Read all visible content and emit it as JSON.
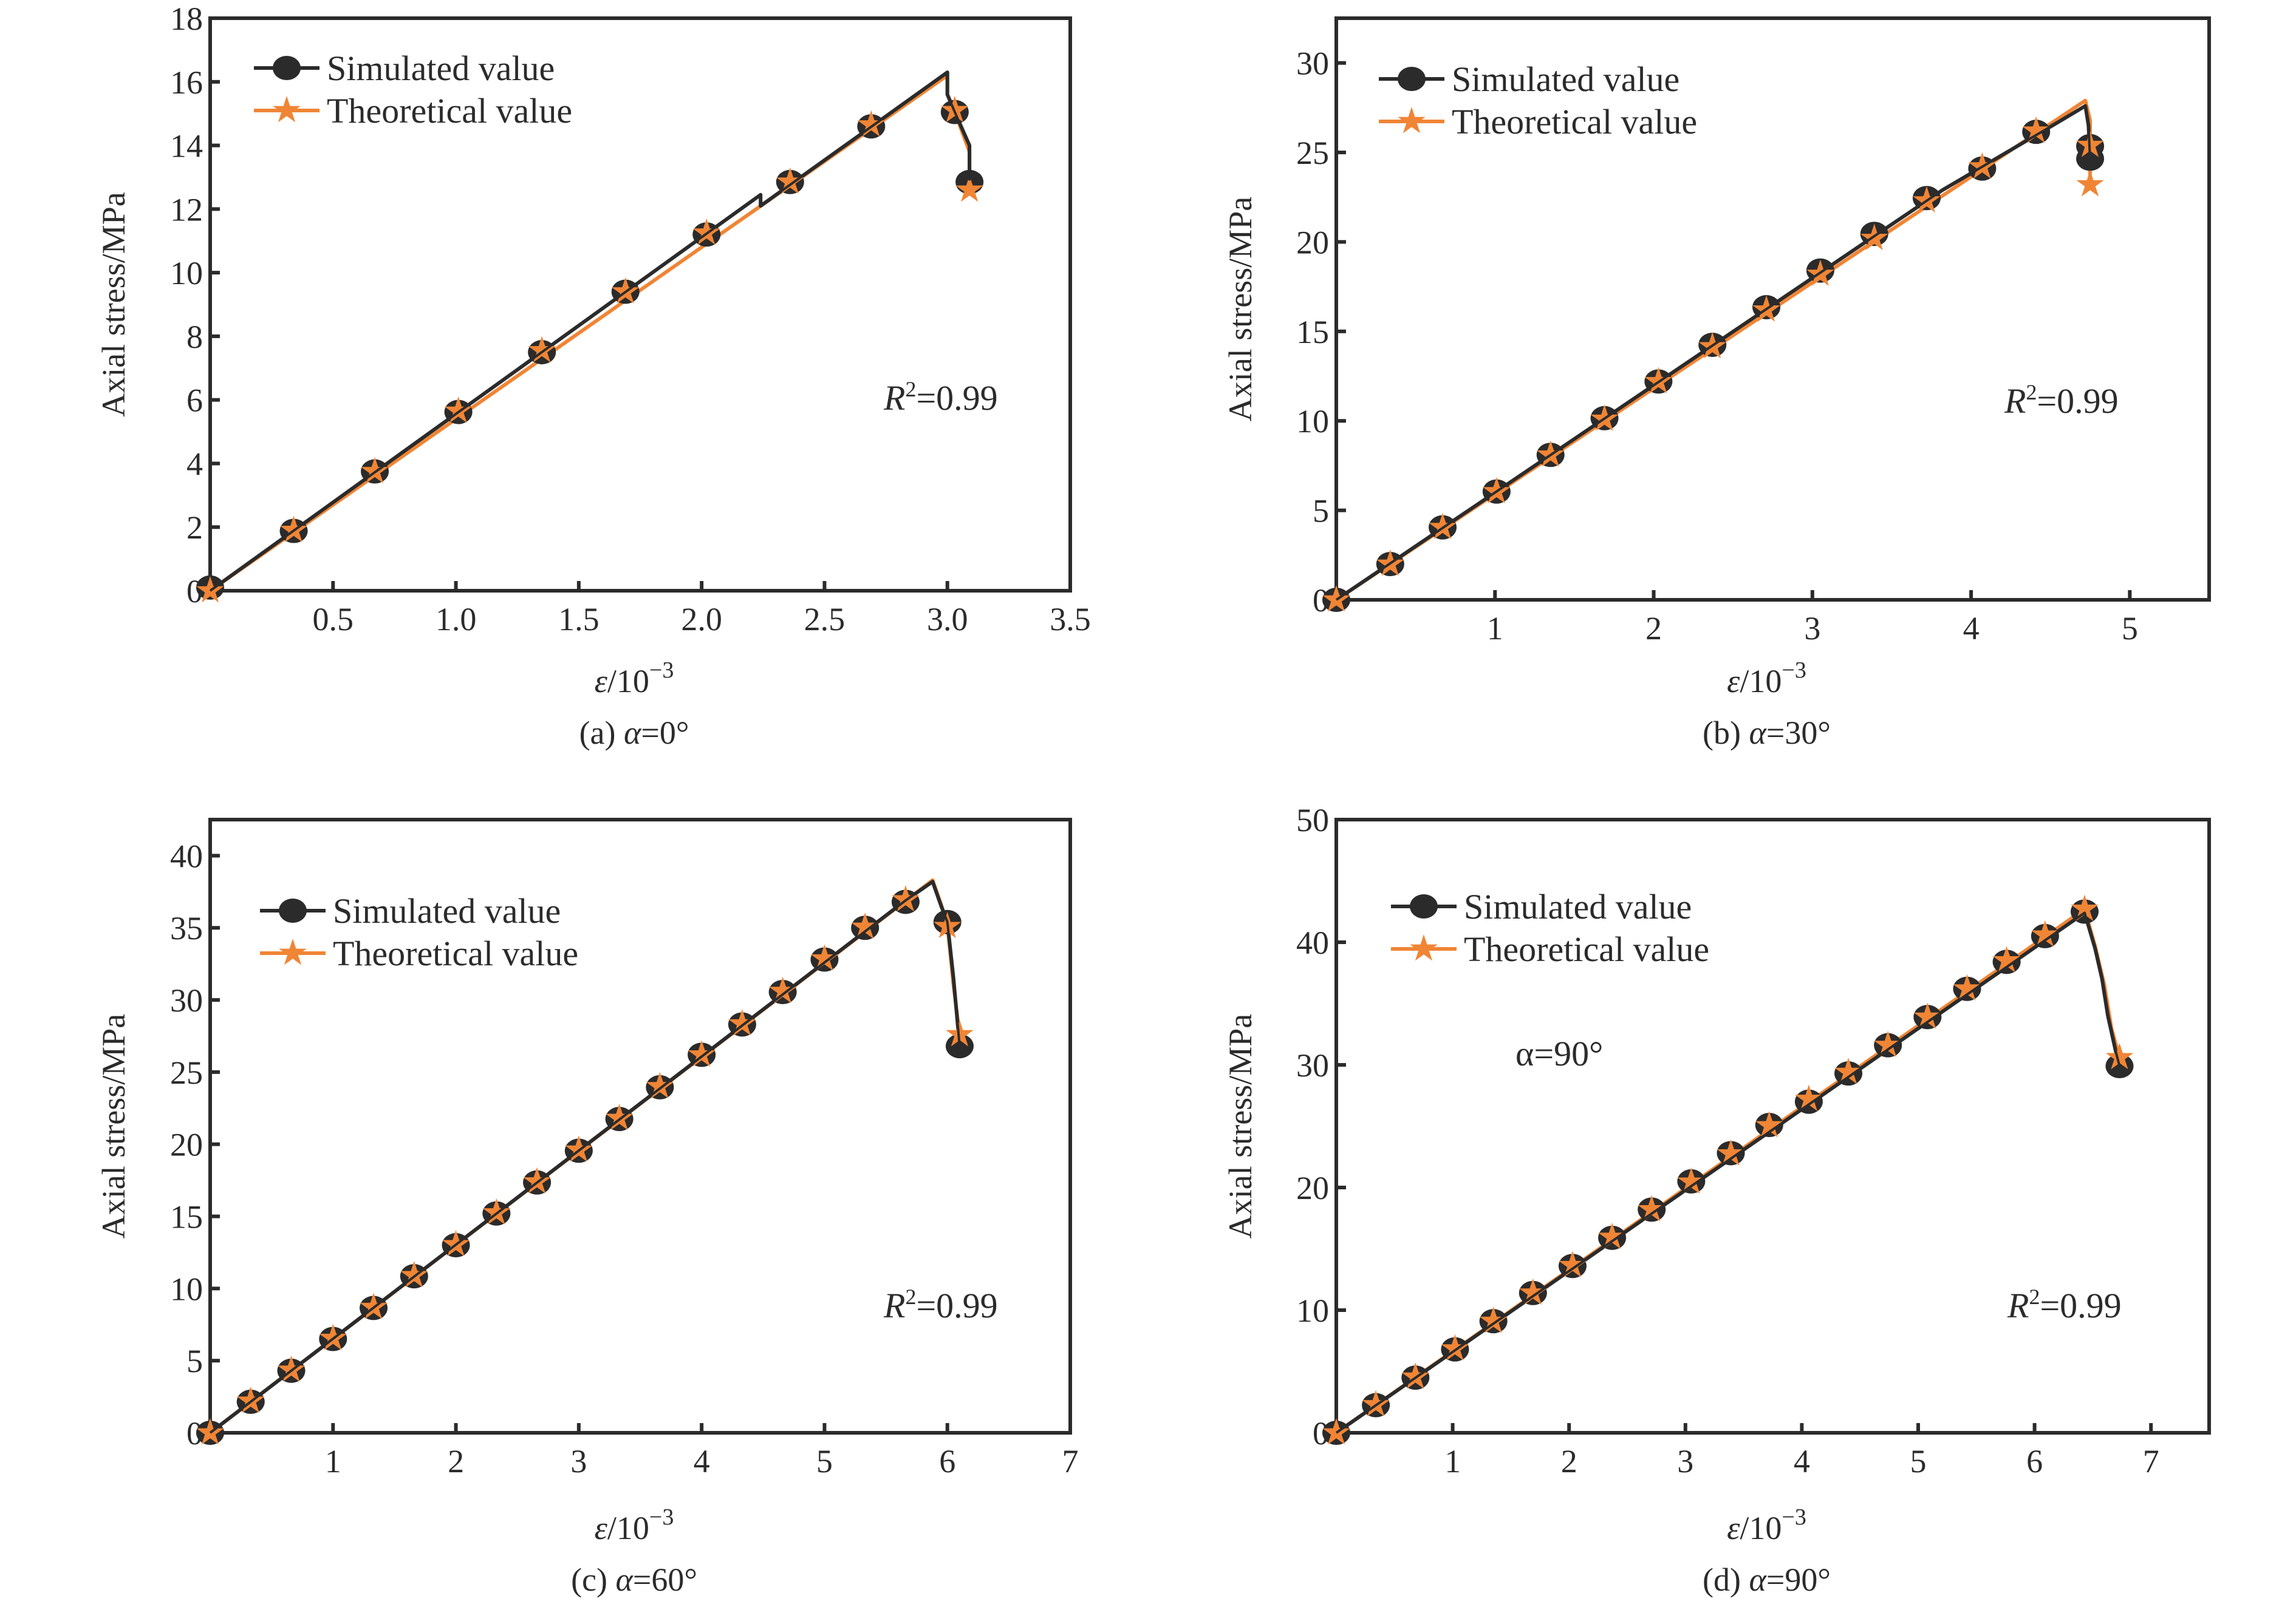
{
  "colors": {
    "simulated": "#2b2b2b",
    "theoretical": "#f08535",
    "axis": "#2b2b2b"
  },
  "chart_data": [
    {
      "type": "line",
      "panel": "a",
      "caption_prefix": "(a) ",
      "caption_alpha": "α",
      "caption_suffix": "=0°",
      "xlabel_base": "ε/10",
      "xlabel_exp": "−3",
      "ylabel": "Axial stress/MPa",
      "xlim": [
        0,
        3.5
      ],
      "ylim": [
        0,
        18
      ],
      "xticks": [
        0.5,
        1.0,
        1.5,
        2.0,
        2.5,
        3.0,
        3.5
      ],
      "xtick_labels": [
        "0.5",
        "1.0",
        "1.5",
        "2.0",
        "2.5",
        "3.0",
        "3.5"
      ],
      "yticks": [
        0,
        2,
        4,
        6,
        8,
        10,
        12,
        14,
        16,
        18
      ],
      "ytick_labels": [
        "0",
        "2",
        "4",
        "6",
        "8",
        "10",
        "12",
        "14",
        "16",
        "18"
      ],
      "legend": {
        "position": "top-left",
        "entries": [
          "Simulated value",
          "Theoretical value"
        ]
      },
      "annotation_r2": {
        "R": "R",
        "sup": "2",
        "value": "=0.99"
      },
      "annotation_alpha": null,
      "series": [
        {
          "name": "Simulated value",
          "marker": "circle",
          "line": [
            [
              0,
              0
            ],
            [
              2.24,
              12.45
            ],
            [
              2.24,
              12.1
            ],
            [
              3.0,
              16.3
            ],
            [
              3.0,
              15.6
            ],
            [
              3.03,
              15.05
            ],
            [
              3.09,
              14.0
            ],
            [
              3.09,
              12.9
            ]
          ],
          "points": [
            [
              0,
              0.1
            ],
            [
              0.34,
              1.88
            ],
            [
              0.67,
              3.75
            ],
            [
              1.01,
              5.62
            ],
            [
              1.35,
              7.5
            ],
            [
              1.69,
              9.4
            ],
            [
              2.02,
              11.2
            ],
            [
              2.36,
              12.85
            ],
            [
              2.69,
              14.6
            ],
            [
              3.03,
              15.05
            ],
            [
              3.09,
              12.85
            ]
          ]
        },
        {
          "name": "Theoretical value",
          "marker": "star",
          "line": [
            [
              0,
              0
            ],
            [
              3.0,
              16.2
            ],
            [
              3.0,
              15.6
            ],
            [
              3.03,
              15.05
            ],
            [
              3.09,
              13.8
            ],
            [
              3.09,
              12.6
            ]
          ],
          "points": [
            [
              0,
              0
            ],
            [
              0.34,
              1.9
            ],
            [
              0.67,
              3.75
            ],
            [
              1.01,
              5.65
            ],
            [
              1.35,
              7.55
            ],
            [
              1.69,
              9.4
            ],
            [
              2.02,
              11.25
            ],
            [
              2.36,
              12.85
            ],
            [
              2.69,
              14.65
            ],
            [
              3.03,
              15.1
            ],
            [
              3.09,
              12.6
            ]
          ]
        }
      ]
    },
    {
      "type": "line",
      "panel": "b",
      "caption_prefix": "(b) ",
      "caption_alpha": "α",
      "caption_suffix": "=30°",
      "xlabel_base": "ε/10",
      "xlabel_exp": "−3",
      "ylabel": "Axial stress/MPa",
      "xlim": [
        0,
        5.5
      ],
      "ylim": [
        0,
        32.5
      ],
      "xticks": [
        1,
        2,
        3,
        4,
        5
      ],
      "xtick_labels": [
        "1",
        "2",
        "3",
        "4",
        "5"
      ],
      "yticks": [
        0,
        5,
        10,
        15,
        20,
        25,
        30
      ],
      "ytick_labels": [
        "0",
        "5",
        "10",
        "15",
        "20",
        "25",
        "30"
      ],
      "legend": {
        "position": "top-left",
        "entries": [
          "Simulated value",
          "Theoretical value"
        ]
      },
      "annotation_r2": {
        "R": "R",
        "sup": "2",
        "value": "=0.99"
      },
      "annotation_alpha": null,
      "series": [
        {
          "name": "Simulated value",
          "marker": "circle",
          "line": [
            [
              0,
              0
            ],
            [
              3.82,
              22.9
            ],
            [
              4.55,
              26.7
            ],
            [
              4.72,
              27.6
            ],
            [
              4.74,
              26.5
            ],
            [
              4.75,
              24.6
            ]
          ],
          "points": [
            [
              0,
              0
            ],
            [
              0.34,
              2.0
            ],
            [
              0.67,
              4.05
            ],
            [
              1.01,
              6.05
            ],
            [
              1.35,
              8.1
            ],
            [
              1.69,
              10.15
            ],
            [
              2.03,
              12.2
            ],
            [
              2.37,
              14.25
            ],
            [
              2.71,
              16.35
            ],
            [
              3.05,
              18.4
            ],
            [
              3.39,
              20.45
            ],
            [
              3.72,
              22.45
            ],
            [
              4.07,
              24.1
            ],
            [
              4.41,
              26.15
            ],
            [
              4.75,
              25.35
            ],
            [
              4.75,
              24.65
            ]
          ]
        },
        {
          "name": "Theoretical value",
          "marker": "star",
          "line": [
            [
              0,
              0
            ],
            [
              4.72,
              27.9
            ],
            [
              4.75,
              26.8
            ],
            [
              4.75,
              23.2
            ]
          ],
          "points": [
            [
              0,
              0
            ],
            [
              0.34,
              2.0
            ],
            [
              0.67,
              4.05
            ],
            [
              1.01,
              6.05
            ],
            [
              1.35,
              8.1
            ],
            [
              1.69,
              10.1
            ],
            [
              2.03,
              12.2
            ],
            [
              2.37,
              14.15
            ],
            [
              2.71,
              16.2
            ],
            [
              3.05,
              18.2
            ],
            [
              3.39,
              20.2
            ],
            [
              3.72,
              22.3
            ],
            [
              4.07,
              24.2
            ],
            [
              4.41,
              26.2
            ],
            [
              4.75,
              25.4
            ],
            [
              4.75,
              23.2
            ]
          ]
        }
      ]
    },
    {
      "type": "line",
      "panel": "c",
      "caption_prefix": "(c) ",
      "caption_alpha": "α",
      "caption_suffix": "=60°",
      "xlabel_base": "ε/10",
      "xlabel_exp": "−3",
      "ylabel": "Axial stress/MPa",
      "xlim": [
        0,
        7
      ],
      "ylim": [
        0,
        42.5
      ],
      "xticks": [
        1,
        2,
        3,
        4,
        5,
        6,
        7
      ],
      "xtick_labels": [
        "1",
        "2",
        "3",
        "4",
        "5",
        "6",
        "7"
      ],
      "yticks": [
        0,
        5,
        10,
        15,
        20,
        25,
        30,
        35,
        40
      ],
      "ytick_labels": [
        "0",
        "5",
        "10",
        "15",
        "20",
        "25",
        "30",
        "35",
        "40"
      ],
      "legend": {
        "position": "top-left",
        "entries": [
          "Simulated value",
          "Theoretical value"
        ]
      },
      "annotation_r2": {
        "R": "R",
        "sup": "2",
        "value": "=0.99"
      },
      "annotation_alpha": null,
      "series": [
        {
          "name": "Simulated value",
          "marker": "circle",
          "line": [
            [
              0,
              0
            ],
            [
              5.66,
              36.9
            ],
            [
              5.88,
              38.2
            ],
            [
              5.95,
              36.5
            ],
            [
              6.0,
              35.4
            ],
            [
              6.05,
              31.5
            ],
            [
              6.1,
              26.8
            ]
          ],
          "points": [
            [
              0,
              0
            ],
            [
              0.33,
              2.15
            ],
            [
              0.66,
              4.3
            ],
            [
              1.0,
              6.5
            ],
            [
              1.33,
              8.65
            ],
            [
              1.66,
              10.85
            ],
            [
              2.0,
              13.0
            ],
            [
              2.33,
              15.2
            ],
            [
              2.66,
              17.35
            ],
            [
              3.0,
              19.55
            ],
            [
              3.33,
              21.75
            ],
            [
              3.66,
              23.95
            ],
            [
              4.0,
              26.2
            ],
            [
              4.33,
              28.3
            ],
            [
              4.66,
              30.55
            ],
            [
              5.0,
              32.8
            ],
            [
              5.33,
              35.0
            ],
            [
              5.66,
              36.8
            ],
            [
              6.0,
              35.4
            ],
            [
              6.1,
              26.8
            ]
          ]
        },
        {
          "name": "Theoretical value",
          "marker": "star",
          "line": [
            [
              0,
              0
            ],
            [
              5.88,
              38.3
            ],
            [
              5.95,
              36.6
            ],
            [
              6.0,
              35.2
            ],
            [
              6.05,
              31.0
            ],
            [
              6.1,
              27.6
            ]
          ],
          "points": [
            [
              0,
              0
            ],
            [
              0.33,
              2.2
            ],
            [
              0.66,
              4.35
            ],
            [
              1.0,
              6.55
            ],
            [
              1.33,
              8.7
            ],
            [
              1.66,
              10.9
            ],
            [
              2.0,
              13.05
            ],
            [
              2.33,
              15.25
            ],
            [
              2.66,
              17.4
            ],
            [
              3.0,
              19.6
            ],
            [
              3.33,
              21.8
            ],
            [
              3.66,
              24.0
            ],
            [
              4.0,
              26.2
            ],
            [
              4.33,
              28.35
            ],
            [
              4.66,
              30.6
            ],
            [
              5.0,
              32.85
            ],
            [
              5.33,
              35.05
            ],
            [
              5.66,
              36.95
            ],
            [
              6.0,
              35.1
            ],
            [
              6.1,
              27.6
            ]
          ]
        }
      ]
    },
    {
      "type": "line",
      "panel": "d",
      "caption_prefix": "(d) ",
      "caption_alpha": "α",
      "caption_suffix": "=90°",
      "xlabel_base": "ε/10",
      "xlabel_exp": "−3",
      "ylabel": "Axial stress/MPa",
      "xlim": [
        0,
        7.5
      ],
      "ylim": [
        0,
        50
      ],
      "xticks": [
        1,
        2,
        3,
        4,
        5,
        6,
        7
      ],
      "xtick_labels": [
        "1",
        "2",
        "3",
        "4",
        "5",
        "6",
        "7"
      ],
      "yticks": [
        0,
        10,
        20,
        30,
        40,
        50
      ],
      "ytick_labels": [
        "0",
        "10",
        "20",
        "30",
        "40",
        "50"
      ],
      "legend": {
        "position": "top-left",
        "entries": [
          "Simulated value",
          "Theoretical value"
        ]
      },
      "annotation_r2": {
        "R": "R",
        "sup": "2",
        "value": "=0.99"
      },
      "annotation_alpha": "α=90°",
      "series": [
        {
          "name": "Simulated value",
          "marker": "circle",
          "line": [
            [
              0,
              0
            ],
            [
              6.43,
              42.4
            ],
            [
              6.52,
              39.5
            ],
            [
              6.58,
              37.0
            ],
            [
              6.63,
              34.0
            ],
            [
              6.7,
              31.0
            ],
            [
              6.73,
              29.9
            ]
          ],
          "points": [
            [
              0,
              0
            ],
            [
              0.34,
              2.25
            ],
            [
              0.68,
              4.5
            ],
            [
              1.02,
              6.8
            ],
            [
              1.35,
              9.1
            ],
            [
              1.69,
              11.4
            ],
            [
              2.03,
              13.6
            ],
            [
              2.37,
              15.9
            ],
            [
              2.71,
              18.2
            ],
            [
              3.05,
              20.5
            ],
            [
              3.39,
              22.8
            ],
            [
              3.72,
              25.1
            ],
            [
              4.06,
              27.0
            ],
            [
              4.4,
              29.3
            ],
            [
              4.74,
              31.6
            ],
            [
              5.08,
              33.9
            ],
            [
              5.42,
              36.2
            ],
            [
              5.76,
              38.4
            ],
            [
              6.09,
              40.5
            ],
            [
              6.43,
              42.5
            ],
            [
              6.73,
              29.9
            ]
          ]
        },
        {
          "name": "Theoretical value",
          "marker": "star",
          "line": [
            [
              0,
              0
            ],
            [
              6.43,
              42.7
            ],
            [
              6.52,
              39.7
            ],
            [
              6.6,
              36.5
            ],
            [
              6.66,
              33.0
            ],
            [
              6.73,
              30.6
            ]
          ],
          "points": [
            [
              0,
              0
            ],
            [
              0.34,
              2.3
            ],
            [
              0.68,
              4.55
            ],
            [
              1.02,
              6.85
            ],
            [
              1.35,
              9.1
            ],
            [
              1.69,
              11.4
            ],
            [
              2.03,
              13.65
            ],
            [
              2.37,
              15.95
            ],
            [
              2.71,
              18.2
            ],
            [
              3.05,
              20.45
            ],
            [
              3.39,
              22.75
            ],
            [
              3.72,
              25.05
            ],
            [
              4.06,
              27.2
            ],
            [
              4.4,
              29.4
            ],
            [
              4.74,
              31.6
            ],
            [
              5.08,
              33.9
            ],
            [
              5.42,
              36.2
            ],
            [
              5.76,
              38.5
            ],
            [
              6.09,
              40.6
            ],
            [
              6.43,
              42.7
            ],
            [
              6.73,
              30.6
            ]
          ]
        }
      ]
    }
  ]
}
